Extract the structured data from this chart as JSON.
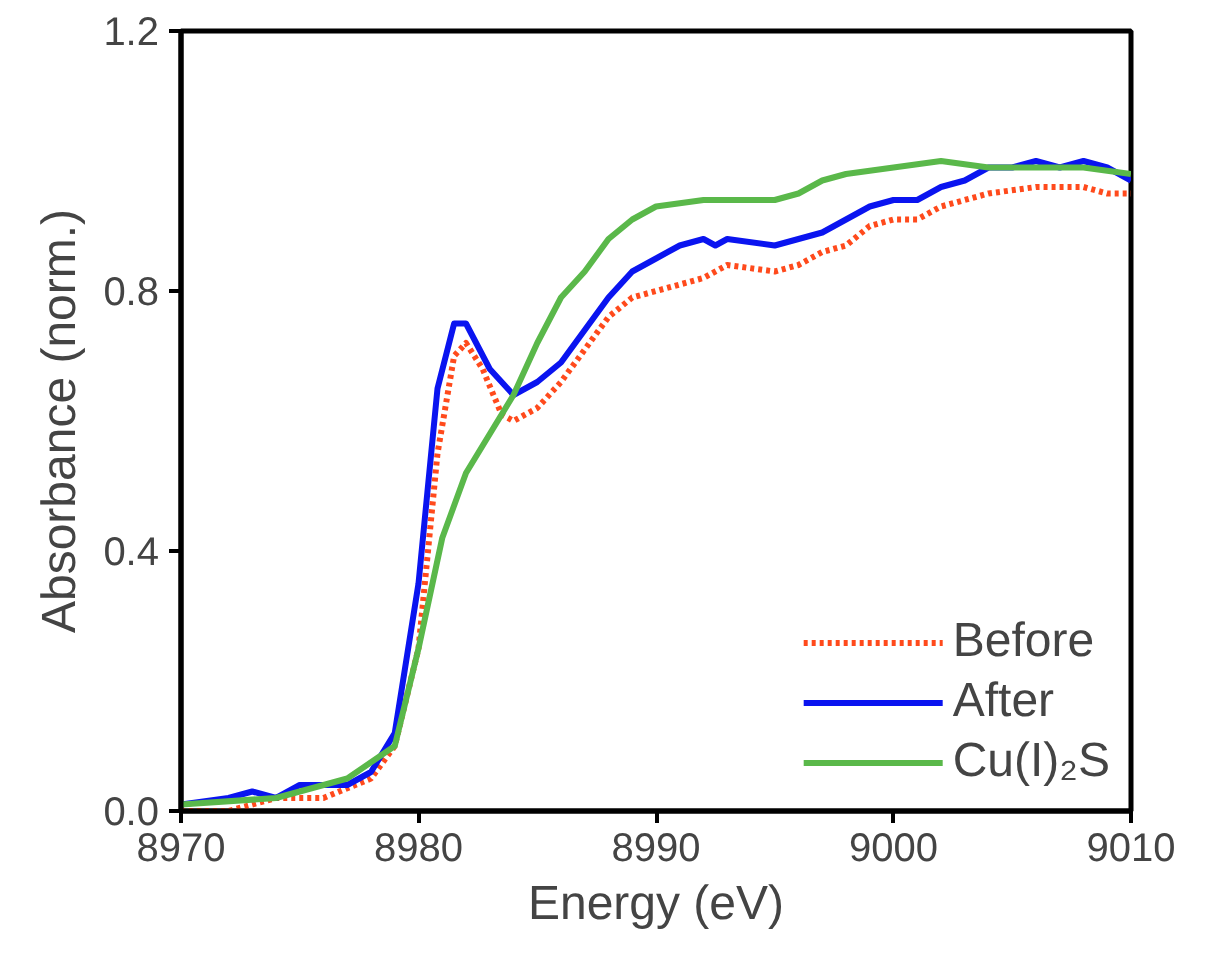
{
  "chart_data": {
    "type": "line",
    "xlabel": "Energy (eV)",
    "ylabel": "Absorbance (norm.)",
    "xlim": [
      8970,
      9010
    ],
    "ylim": [
      0,
      1.2
    ],
    "xticks": [
      8970,
      8980,
      8990,
      9000,
      9010
    ],
    "yticks": [
      {
        "value": 0,
        "label": "0.0"
      },
      {
        "value": 0.4,
        "label": "0.4"
      },
      {
        "value": 0.8,
        "label": "0.8"
      },
      {
        "value": 1.2,
        "label": "1.2"
      }
    ],
    "grid": false,
    "legend": "bottom right",
    "marker": "none",
    "series": [
      {
        "name": "Before",
        "color": "#ff4a1c",
        "line_style": "dotted",
        "x": [
          8970,
          8972,
          8974,
          8976,
          8978,
          8979,
          8980,
          8980.8,
          8981.5,
          8982,
          8982.7,
          8983.5,
          8984,
          8985,
          8986,
          8987,
          8988,
          8989,
          8990,
          8992,
          8993,
          8995,
          8996,
          8997,
          8998,
          8999,
          9000,
          9001,
          9002,
          9004,
          9006,
          9008,
          9009,
          9010
        ],
        "values": [
          0.0,
          0.0,
          0.02,
          0.02,
          0.05,
          0.1,
          0.25,
          0.55,
          0.7,
          0.72,
          0.68,
          0.61,
          0.6,
          0.62,
          0.66,
          0.71,
          0.76,
          0.79,
          0.8,
          0.82,
          0.84,
          0.83,
          0.84,
          0.86,
          0.87,
          0.9,
          0.91,
          0.91,
          0.93,
          0.95,
          0.96,
          0.96,
          0.95,
          0.95
        ]
      },
      {
        "name": "After",
        "color": "#0a14f0",
        "line_style": "solid",
        "x": [
          8970,
          8972,
          8973,
          8974,
          8975,
          8976,
          8977,
          8978,
          8979,
          8980,
          8980.8,
          8981.5,
          8982,
          8983,
          8984,
          8985,
          8986,
          8987,
          8988,
          8989,
          8990,
          8991,
          8992,
          8992.5,
          8993,
          8995,
          8996,
          8997,
          8998,
          8999,
          9000,
          9001,
          9002,
          9003,
          9004,
          9005,
          9006,
          9007,
          9008,
          9009,
          9010
        ],
        "values": [
          0.01,
          0.02,
          0.03,
          0.02,
          0.04,
          0.04,
          0.04,
          0.06,
          0.12,
          0.35,
          0.65,
          0.75,
          0.75,
          0.68,
          0.64,
          0.66,
          0.69,
          0.74,
          0.79,
          0.83,
          0.85,
          0.87,
          0.88,
          0.87,
          0.88,
          0.87,
          0.88,
          0.89,
          0.91,
          0.93,
          0.94,
          0.94,
          0.96,
          0.97,
          0.99,
          0.99,
          1.0,
          0.99,
          1.0,
          0.99,
          0.97
        ]
      },
      {
        "name": "Cu(I)₂S",
        "color": "#5ab84a",
        "line_style": "solid",
        "x": [
          8970,
          8974,
          8977,
          8979,
          8980,
          8981,
          8982,
          8983,
          8984,
          8985,
          8986,
          8987,
          8988,
          8989,
          8990,
          8992,
          8994,
          8995,
          8996,
          8997,
          8998,
          9000,
          9002,
          9004,
          9006,
          9008,
          9010
        ],
        "values": [
          0.01,
          0.02,
          0.05,
          0.1,
          0.25,
          0.42,
          0.52,
          0.58,
          0.64,
          0.72,
          0.79,
          0.83,
          0.88,
          0.91,
          0.93,
          0.94,
          0.94,
          0.94,
          0.95,
          0.97,
          0.98,
          0.99,
          1.0,
          0.99,
          0.99,
          0.99,
          0.98
        ]
      }
    ]
  }
}
